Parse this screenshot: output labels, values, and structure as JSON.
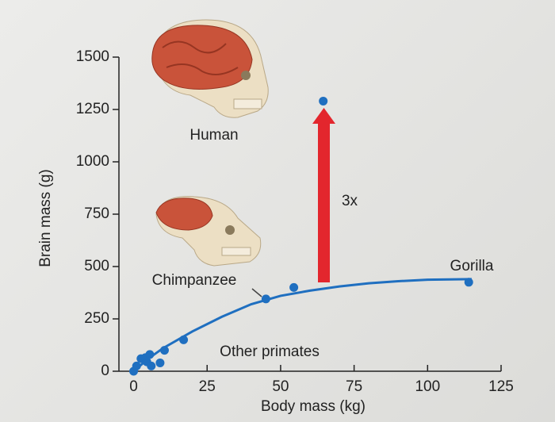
{
  "chart_data": {
    "type": "scatter",
    "xlabel": "Body mass (kg)",
    "ylabel": "Brain mass (g)",
    "xlim": [
      -5,
      125
    ],
    "ylim": [
      0,
      1500
    ],
    "xticks": [
      0,
      25,
      50,
      75,
      100,
      125
    ],
    "yticks": [
      0,
      250,
      500,
      750,
      1000,
      1250,
      1500
    ],
    "series": [
      {
        "type": "scatter",
        "color": "#1f6fc0",
        "x": [
          0,
          1,
          2.5,
          4,
          5.5,
          4.5,
          6,
          9,
          10.5,
          17,
          45,
          54.5,
          64.5,
          114
        ],
        "values": [
          0,
          25,
          60,
          65,
          80,
          45,
          25,
          40,
          100,
          150,
          345,
          400,
          1290,
          425
        ]
      },
      {
        "type": "line",
        "color": "#1f6fc0",
        "x": [
          0,
          5,
          10,
          20,
          30,
          40,
          50,
          60,
          70,
          80,
          90,
          100,
          115
        ],
        "values": [
          0,
          60,
          110,
          190,
          260,
          320,
          360,
          385,
          405,
          420,
          430,
          437,
          440
        ]
      }
    ],
    "annotations": [
      "Human",
      "Chimpanzee",
      "Gorilla",
      "Other primates",
      "3x"
    ]
  }
}
